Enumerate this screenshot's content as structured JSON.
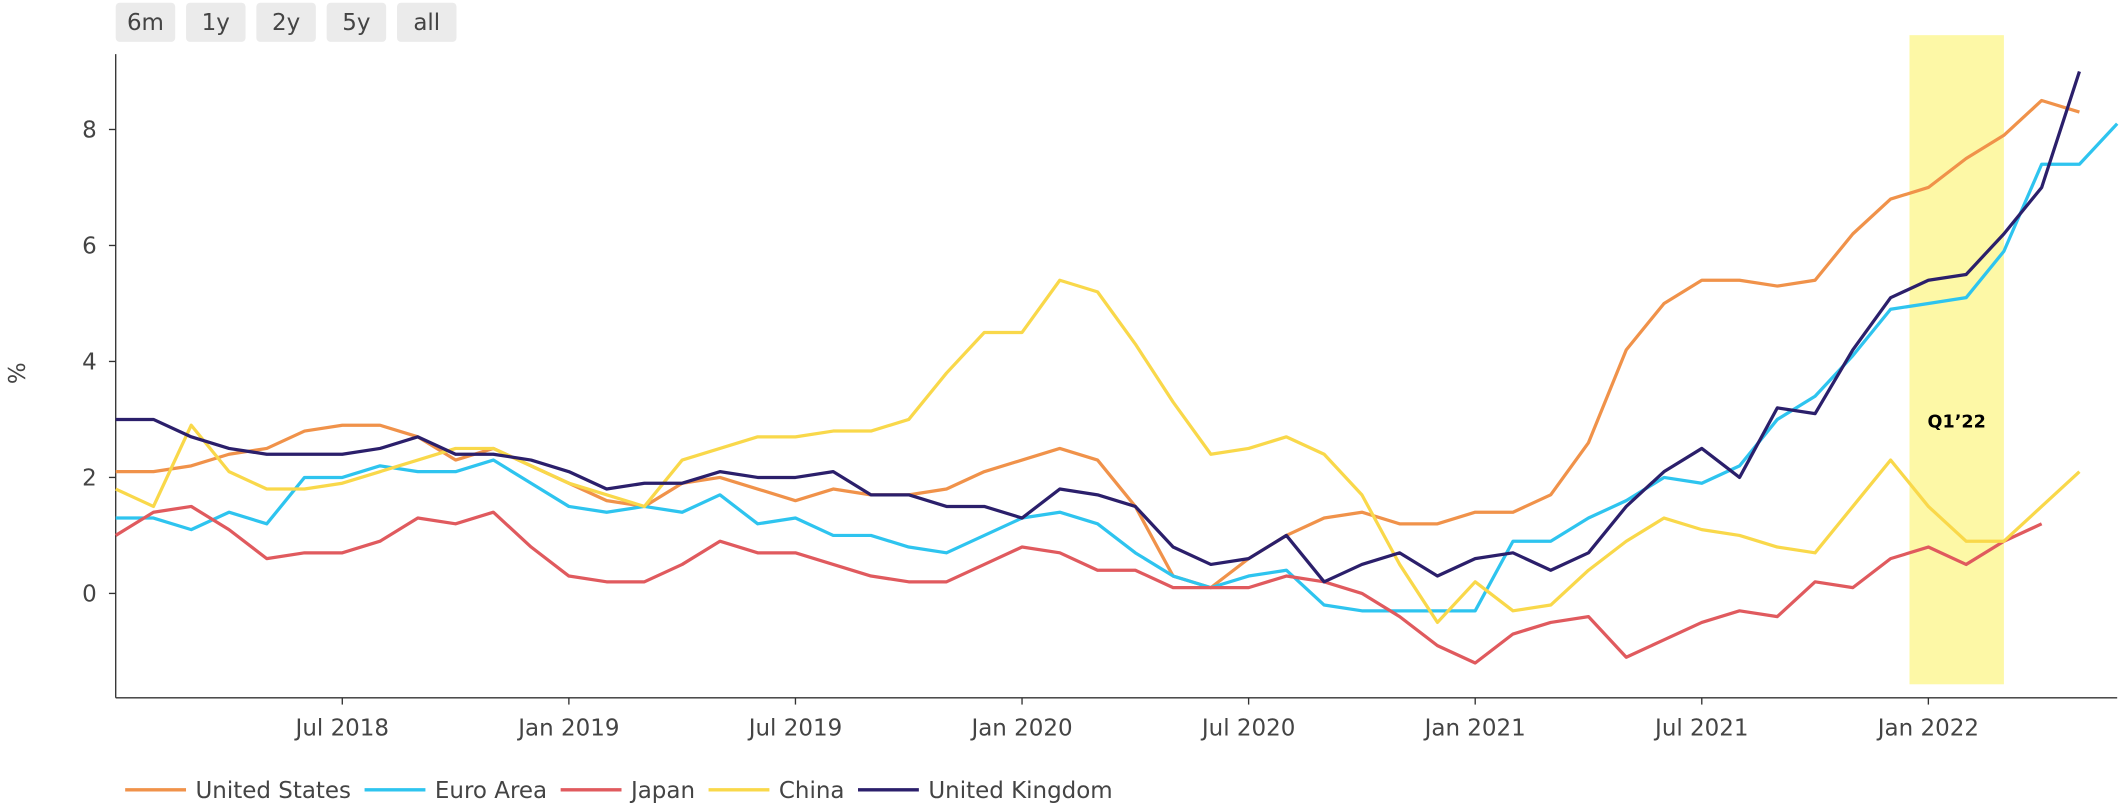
{
  "chart_data": {
    "type": "line",
    "y_label": "%",
    "range_buttons": [
      "6m",
      "1y",
      "2y",
      "5y",
      "all"
    ],
    "x": [
      "2018-01",
      "2018-02",
      "2018-03",
      "2018-04",
      "2018-05",
      "2018-06",
      "2018-07",
      "2018-08",
      "2018-09",
      "2018-10",
      "2018-11",
      "2018-12",
      "2019-01",
      "2019-02",
      "2019-03",
      "2019-04",
      "2019-05",
      "2019-06",
      "2019-07",
      "2019-08",
      "2019-09",
      "2019-10",
      "2019-11",
      "2019-12",
      "2020-01",
      "2020-02",
      "2020-03",
      "2020-04",
      "2020-05",
      "2020-06",
      "2020-07",
      "2020-08",
      "2020-09",
      "2020-10",
      "2020-11",
      "2020-12",
      "2021-01",
      "2021-02",
      "2021-03",
      "2021-04",
      "2021-05",
      "2021-06",
      "2021-07",
      "2021-08",
      "2021-09",
      "2021-10",
      "2021-11",
      "2021-12",
      "2022-01",
      "2022-02",
      "2022-03",
      "2022-04",
      "2022-05",
      "2022-06"
    ],
    "xlim": [
      "2018-01",
      "2022-06"
    ],
    "xticks": [
      {
        "value": "2018-07",
        "label": "Jul 2018"
      },
      {
        "value": "2019-01",
        "label": "Jan 2019"
      },
      {
        "value": "2019-07",
        "label": "Jul 2019"
      },
      {
        "value": "2020-01",
        "label": "Jan 2020"
      },
      {
        "value": "2020-07",
        "label": "Jul 2020"
      },
      {
        "value": "2021-01",
        "label": "Jan 2021"
      },
      {
        "value": "2021-07",
        "label": "Jul 2021"
      },
      {
        "value": "2022-01",
        "label": "Jan 2022"
      }
    ],
    "ylim": [
      -1.8,
      9.3
    ],
    "yticks": [
      0,
      2,
      4,
      6,
      8
    ],
    "grid": false,
    "legend": "bottom",
    "highlight": {
      "label": "Q1’22",
      "x": [
        "2022-01",
        "2022-03"
      ],
      "color": "#fdf8a6"
    },
    "series": [
      {
        "name": "United States",
        "color": "#f0924a",
        "values": [
          2.1,
          2.1,
          2.2,
          2.4,
          2.5,
          2.8,
          2.9,
          2.9,
          2.7,
          2.3,
          2.5,
          2.2,
          1.9,
          1.6,
          1.5,
          1.9,
          2.0,
          1.8,
          1.6,
          1.8,
          1.7,
          1.7,
          1.8,
          2.1,
          2.3,
          2.5,
          2.3,
          1.5,
          0.3,
          0.1,
          0.6,
          1.0,
          1.3,
          1.4,
          1.2,
          1.2,
          1.4,
          1.4,
          1.7,
          2.6,
          4.2,
          5.0,
          5.4,
          5.4,
          5.3,
          5.4,
          6.2,
          6.8,
          7.0,
          7.5,
          7.9,
          8.5,
          8.3,
          null
        ]
      },
      {
        "name": "Euro Area",
        "color": "#2ec4ef",
        "values": [
          1.3,
          1.3,
          1.1,
          1.4,
          1.2,
          2.0,
          2.0,
          2.2,
          2.1,
          2.1,
          2.3,
          1.9,
          1.5,
          1.4,
          1.5,
          1.4,
          1.7,
          1.2,
          1.3,
          1.0,
          1.0,
          0.8,
          0.7,
          1.0,
          1.3,
          1.4,
          1.2,
          0.7,
          0.3,
          0.1,
          0.3,
          0.4,
          -0.2,
          -0.3,
          -0.3,
          -0.3,
          -0.3,
          0.9,
          0.9,
          1.3,
          1.6,
          2.0,
          1.9,
          2.2,
          3.0,
          3.4,
          4.1,
          4.9,
          5.0,
          5.1,
          5.9,
          7.4,
          7.4,
          8.1
        ]
      },
      {
        "name": "Japan",
        "color": "#e05a5e",
        "values": [
          1.0,
          1.4,
          1.5,
          1.1,
          0.6,
          0.7,
          0.7,
          0.9,
          1.3,
          1.2,
          1.4,
          0.8,
          0.3,
          0.2,
          0.2,
          0.5,
          0.9,
          0.7,
          0.7,
          0.5,
          0.3,
          0.2,
          0.2,
          0.5,
          0.8,
          0.7,
          0.4,
          0.4,
          0.1,
          0.1,
          0.1,
          0.3,
          0.2,
          0.0,
          -0.4,
          -0.9,
          -1.2,
          -0.7,
          -0.5,
          -0.4,
          -1.1,
          -0.8,
          -0.5,
          -0.3,
          -0.4,
          0.2,
          0.1,
          0.6,
          0.8,
          0.5,
          0.9,
          1.2,
          null,
          null
        ]
      },
      {
        "name": "China",
        "color": "#f9d84a",
        "values": [
          1.8,
          1.5,
          2.9,
          2.1,
          1.8,
          1.8,
          1.9,
          2.1,
          2.3,
          2.5,
          2.5,
          2.2,
          1.9,
          1.7,
          1.5,
          2.3,
          2.5,
          2.7,
          2.7,
          2.8,
          2.8,
          3.0,
          3.8,
          4.5,
          4.5,
          5.4,
          5.2,
          4.3,
          3.3,
          2.4,
          2.5,
          2.7,
          2.4,
          1.7,
          0.5,
          -0.5,
          0.2,
          -0.3,
          -0.2,
          0.4,
          0.9,
          1.3,
          1.1,
          1.0,
          0.8,
          0.7,
          1.5,
          2.3,
          1.5,
          0.9,
          0.9,
          1.5,
          2.1,
          null
        ]
      },
      {
        "name": "United Kingdom",
        "color": "#2b1f6b",
        "values": [
          3.0,
          3.0,
          2.7,
          2.5,
          2.4,
          2.4,
          2.4,
          2.5,
          2.7,
          2.4,
          2.4,
          2.3,
          2.1,
          1.8,
          1.9,
          1.9,
          2.1,
          2.0,
          2.0,
          2.1,
          1.7,
          1.7,
          1.5,
          1.5,
          1.3,
          1.8,
          1.7,
          1.5,
          0.8,
          0.5,
          0.6,
          1.0,
          0.2,
          0.5,
          0.7,
          0.3,
          0.6,
          0.7,
          0.4,
          0.7,
          1.5,
          2.1,
          2.5,
          2.0,
          3.2,
          3.1,
          4.2,
          5.1,
          5.4,
          5.5,
          6.2,
          7.0,
          9.0,
          null
        ]
      }
    ]
  }
}
